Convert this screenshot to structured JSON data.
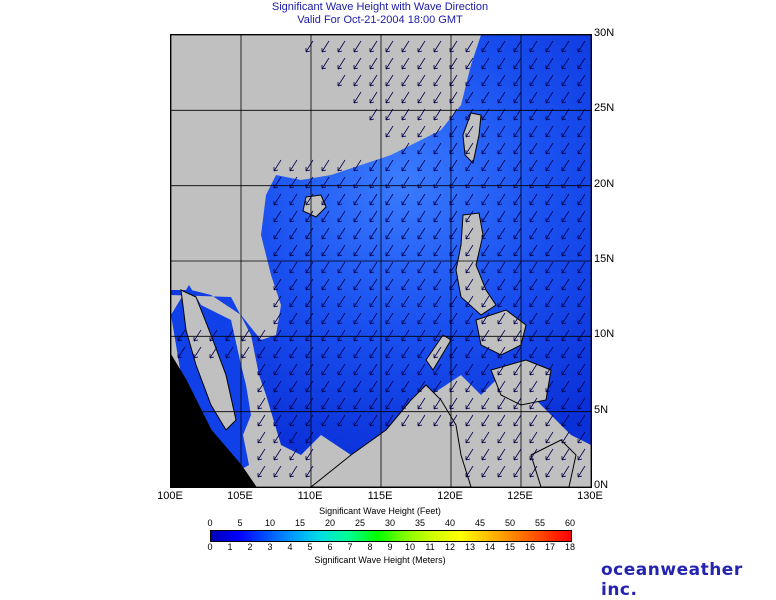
{
  "header": {
    "title": "Significant Wave Height with Wave Direction",
    "valid": "Valid For Oct-21-2004 18:00 GMT"
  },
  "axes": {
    "lat_labels": [
      "30N",
      "25N",
      "20N",
      "15N",
      "10N",
      "5N",
      "0N"
    ],
    "lon_labels": [
      "100E",
      "105E",
      "110E",
      "115E",
      "120E",
      "125E",
      "130E"
    ],
    "lat_range": [
      0,
      30
    ],
    "lon_range": [
      100,
      130
    ]
  },
  "legend": {
    "feet_title": "Significant Wave Height (Feet)",
    "feet_ticks": [
      "0",
      "5",
      "10",
      "15",
      "20",
      "25",
      "30",
      "35",
      "40",
      "45",
      "50",
      "55",
      "60"
    ],
    "meters_title": "Significant Wave Height (Meters)",
    "meters_ticks": [
      "0",
      "1",
      "2",
      "3",
      "4",
      "5",
      "6",
      "7",
      "8",
      "9",
      "10",
      "11",
      "12",
      "13",
      "14",
      "15",
      "16",
      "17",
      "18"
    ],
    "colors": [
      "#0000b4",
      "#0000ff",
      "#0050ff",
      "#00a0ff",
      "#00e0e0",
      "#00ff90",
      "#00ff00",
      "#80ff00",
      "#d0ff00",
      "#ffff00",
      "#ffc000",
      "#ff8000",
      "#ff4000",
      "#ff0000"
    ]
  },
  "map": {
    "land_color": "#c0c0c0",
    "sea_color_low": "#0028e0",
    "sea_color_high": "#3a8cff",
    "arrow_color": "#000050",
    "arrow_direction": "southwest"
  },
  "brand": {
    "logo": "oceanweather inc."
  }
}
